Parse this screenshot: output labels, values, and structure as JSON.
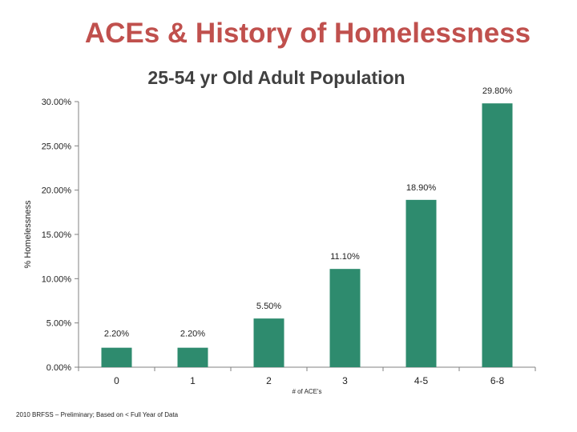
{
  "slide": {
    "title": "ACEs & History of Homelessness",
    "footnote": "2010 BRFSS – Preliminary; Based on < Full Year of Data"
  },
  "chart_data": {
    "type": "bar",
    "title": "25-54 yr Old Adult Population",
    "xlabel": "# of ACE's",
    "ylabel": "% Homelessness",
    "categories": [
      "0",
      "1",
      "2",
      "3",
      "4-5",
      "6-8"
    ],
    "values": [
      2.2,
      2.2,
      5.5,
      11.1,
      18.9,
      29.8
    ],
    "data_labels": [
      "2.20%",
      "2.20%",
      "5.50%",
      "11.10%",
      "18.90%",
      "29.80%"
    ],
    "ylim": [
      0,
      30
    ],
    "yticks": [
      0,
      5,
      10,
      15,
      20,
      25,
      30
    ],
    "ytick_labels": [
      "0.00%",
      "5.00%",
      "10.00%",
      "15.00%",
      "20.00%",
      "25.00%",
      "30.00%"
    ],
    "grid": false,
    "bar_color": "#2e8b6e"
  }
}
